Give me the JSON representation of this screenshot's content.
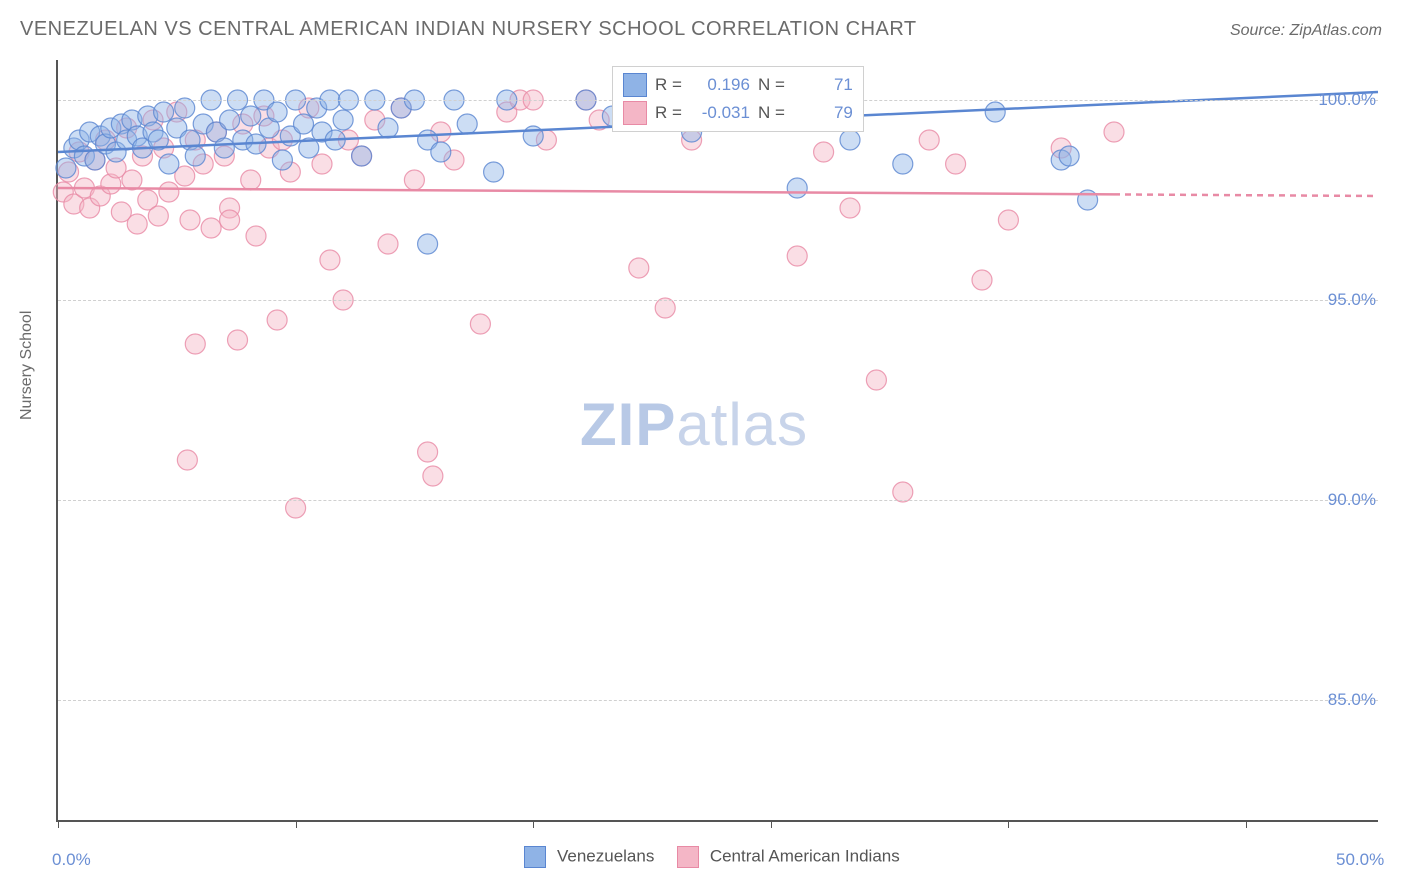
{
  "title": "VENEZUELAN VS CENTRAL AMERICAN INDIAN NURSERY SCHOOL CORRELATION CHART",
  "source": "Source: ZipAtlas.com",
  "ylabel": "Nursery School",
  "watermark_a": "ZIP",
  "watermark_b": "atlas",
  "chart": {
    "type": "scatter",
    "xlim": [
      0,
      50
    ],
    "ylim": [
      82,
      101
    ],
    "xtick_labels": [
      "0.0%",
      "50.0%"
    ],
    "xtick_positions": [
      0,
      50
    ],
    "xtick_marks": [
      0,
      9,
      18,
      27,
      36,
      45
    ],
    "ytick_labels": [
      "85.0%",
      "90.0%",
      "95.0%",
      "100.0%"
    ],
    "ytick_positions": [
      85,
      90,
      95,
      100
    ],
    "grid_color": "#d0d0d0",
    "axis_color": "#555555",
    "background_color": "#ffffff",
    "marker_radius": 10,
    "marker_opacity": 0.45,
    "line_width": 2.5
  },
  "series": {
    "venezuelans": {
      "label": "Venezuelans",
      "color_fill": "#8fb3e6",
      "color_stroke": "#5a86d1",
      "regression": {
        "y_at_x0": 98.7,
        "y_at_x50": 100.2,
        "dashed_from_x": null
      },
      "stats": {
        "R": "0.196",
        "N": "71"
      },
      "points": [
        [
          0.3,
          98.3
        ],
        [
          0.6,
          98.8
        ],
        [
          0.8,
          99.0
        ],
        [
          1.0,
          98.6
        ],
        [
          1.2,
          99.2
        ],
        [
          1.4,
          98.5
        ],
        [
          1.6,
          99.1
        ],
        [
          1.8,
          98.9
        ],
        [
          2.0,
          99.3
        ],
        [
          2.2,
          98.7
        ],
        [
          2.4,
          99.4
        ],
        [
          2.6,
          99.0
        ],
        [
          2.8,
          99.5
        ],
        [
          3.0,
          99.1
        ],
        [
          3.2,
          98.8
        ],
        [
          3.4,
          99.6
        ],
        [
          3.6,
          99.2
        ],
        [
          3.8,
          99.0
        ],
        [
          4.0,
          99.7
        ],
        [
          4.2,
          98.4
        ],
        [
          4.5,
          99.3
        ],
        [
          4.8,
          99.8
        ],
        [
          5.0,
          99.0
        ],
        [
          5.2,
          98.6
        ],
        [
          5.5,
          99.4
        ],
        [
          5.8,
          100.0
        ],
        [
          6.0,
          99.2
        ],
        [
          6.3,
          98.8
        ],
        [
          6.5,
          99.5
        ],
        [
          6.8,
          100.0
        ],
        [
          7.0,
          99.0
        ],
        [
          7.3,
          99.6
        ],
        [
          7.5,
          98.9
        ],
        [
          7.8,
          100.0
        ],
        [
          8.0,
          99.3
        ],
        [
          8.3,
          99.7
        ],
        [
          8.5,
          98.5
        ],
        [
          8.8,
          99.1
        ],
        [
          9.0,
          100.0
        ],
        [
          9.3,
          99.4
        ],
        [
          9.5,
          98.8
        ],
        [
          9.8,
          99.8
        ],
        [
          10.0,
          99.2
        ],
        [
          10.3,
          100.0
        ],
        [
          10.5,
          99.0
        ],
        [
          10.8,
          99.5
        ],
        [
          11.0,
          100.0
        ],
        [
          11.5,
          98.6
        ],
        [
          12.0,
          100.0
        ],
        [
          12.5,
          99.3
        ],
        [
          13.0,
          99.8
        ],
        [
          13.5,
          100.0
        ],
        [
          14.0,
          99.0
        ],
        [
          14.5,
          98.7
        ],
        [
          15.0,
          100.0
        ],
        [
          15.5,
          99.4
        ],
        [
          16.5,
          98.2
        ],
        [
          17.0,
          100.0
        ],
        [
          18.0,
          99.1
        ],
        [
          20.0,
          100.0
        ],
        [
          21.0,
          99.6
        ],
        [
          22.5,
          100.0
        ],
        [
          24.0,
          99.2
        ],
        [
          28.0,
          97.8
        ],
        [
          30.0,
          99.0
        ],
        [
          32.0,
          98.4
        ],
        [
          35.5,
          99.7
        ],
        [
          38.0,
          98.5
        ],
        [
          38.3,
          98.6
        ],
        [
          39.0,
          97.5
        ],
        [
          14.0,
          96.4
        ]
      ]
    },
    "central_american_indians": {
      "label": "Central American Indians",
      "color_fill": "#f4b6c6",
      "color_stroke": "#e88aa5",
      "regression": {
        "y_at_x0": 97.8,
        "y_at_x50": 97.6,
        "dashed_from_x": 40
      },
      "stats": {
        "R": "-0.031",
        "N": "79"
      },
      "points": [
        [
          0.2,
          97.7
        ],
        [
          0.4,
          98.2
        ],
        [
          0.6,
          97.4
        ],
        [
          0.8,
          98.7
        ],
        [
          1.0,
          97.8
        ],
        [
          1.2,
          97.3
        ],
        [
          1.4,
          98.5
        ],
        [
          1.6,
          97.6
        ],
        [
          1.8,
          99.0
        ],
        [
          2.0,
          97.9
        ],
        [
          2.2,
          98.3
        ],
        [
          2.4,
          97.2
        ],
        [
          2.6,
          99.3
        ],
        [
          2.8,
          98.0
        ],
        [
          3.0,
          96.9
        ],
        [
          3.2,
          98.6
        ],
        [
          3.4,
          97.5
        ],
        [
          3.6,
          99.5
        ],
        [
          3.8,
          97.1
        ],
        [
          4.0,
          98.8
        ],
        [
          4.2,
          97.7
        ],
        [
          4.5,
          99.7
        ],
        [
          4.8,
          98.1
        ],
        [
          5.0,
          97.0
        ],
        [
          5.2,
          99.0
        ],
        [
          5.5,
          98.4
        ],
        [
          5.8,
          96.8
        ],
        [
          6.0,
          99.2
        ],
        [
          6.3,
          98.6
        ],
        [
          6.5,
          97.3
        ],
        [
          6.8,
          94.0
        ],
        [
          7.0,
          99.4
        ],
        [
          7.3,
          98.0
        ],
        [
          7.5,
          96.6
        ],
        [
          7.8,
          99.6
        ],
        [
          8.0,
          98.8
        ],
        [
          8.3,
          94.5
        ],
        [
          8.5,
          99.0
        ],
        [
          8.8,
          98.2
        ],
        [
          9.0,
          89.8
        ],
        [
          9.5,
          99.8
        ],
        [
          10.0,
          98.4
        ],
        [
          10.3,
          96.0
        ],
        [
          10.8,
          95.0
        ],
        [
          11.0,
          99.0
        ],
        [
          11.5,
          98.6
        ],
        [
          12.0,
          99.5
        ],
        [
          12.5,
          96.4
        ],
        [
          13.0,
          99.8
        ],
        [
          13.5,
          98.0
        ],
        [
          14.0,
          91.2
        ],
        [
          14.2,
          90.6
        ],
        [
          14.5,
          99.2
        ],
        [
          15.0,
          98.5
        ],
        [
          16.0,
          94.4
        ],
        [
          17.0,
          99.7
        ],
        [
          17.5,
          100.0
        ],
        [
          18.0,
          100.0
        ],
        [
          18.5,
          99.0
        ],
        [
          20.0,
          100.0
        ],
        [
          20.5,
          99.5
        ],
        [
          22.0,
          95.8
        ],
        [
          23.0,
          94.8
        ],
        [
          24.0,
          99.0
        ],
        [
          26.0,
          100.0
        ],
        [
          28.0,
          96.1
        ],
        [
          29.0,
          98.7
        ],
        [
          30.0,
          97.3
        ],
        [
          31.0,
          93.0
        ],
        [
          32.0,
          90.2
        ],
        [
          33.0,
          99.0
        ],
        [
          34.0,
          98.4
        ],
        [
          35.0,
          95.5
        ],
        [
          36.0,
          97.0
        ],
        [
          38.0,
          98.8
        ],
        [
          40.0,
          99.2
        ],
        [
          4.9,
          91.0
        ],
        [
          5.2,
          93.9
        ],
        [
          6.5,
          97.0
        ]
      ]
    }
  },
  "stats_labels": {
    "R": "R =",
    "N": "N ="
  }
}
